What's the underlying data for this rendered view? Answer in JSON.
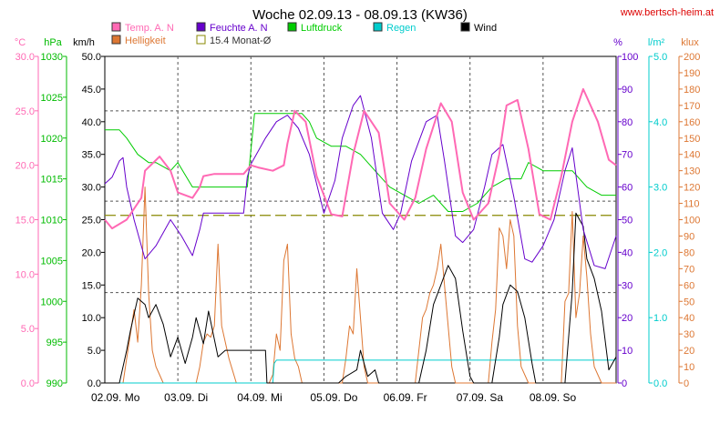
{
  "chart_data": {
    "type": "line",
    "title": "Woche 02.09.13 - 08.09.13 (KW36)",
    "watermark": "www.bertsch-heim.at",
    "x_labels": [
      "02.09.  Mo",
      "03.09.  Di",
      "04.09.  Mi",
      "05.09.  Do",
      "06.09.  Fr",
      "07.09.  Sa",
      "08.09.  So"
    ],
    "x_range": [
      0,
      7
    ],
    "axes": {
      "temp": {
        "unit": "°C",
        "color": "#ff69b4",
        "range": [
          0,
          30
        ],
        "ticks": [
          "0.0",
          "5.0",
          "10.0",
          "15.0",
          "20.0",
          "25.0",
          "30.0"
        ]
      },
      "press": {
        "unit": "hPa",
        "color": "#00bb00",
        "range": [
          990,
          1030
        ],
        "ticks": [
          "990",
          "995",
          "1000",
          "1005",
          "1010",
          "1015",
          "1020",
          "1025",
          "1030"
        ]
      },
      "wind": {
        "unit": "km/h",
        "color": "#000000",
        "range": [
          0,
          50
        ],
        "ticks": [
          "0.0",
          "5.0",
          "10.0",
          "15.0",
          "20.0",
          "25.0",
          "30.0",
          "35.0",
          "40.0",
          "45.0",
          "50.0"
        ]
      },
      "hum": {
        "unit": "%",
        "color": "#6600cc",
        "range": [
          0,
          100
        ],
        "ticks": [
          "0",
          "10",
          "20",
          "30",
          "40",
          "50",
          "60",
          "70",
          "80",
          "90",
          "100"
        ]
      },
      "rain": {
        "unit": "l/m²",
        "color": "#00cccc",
        "range": [
          0,
          5
        ],
        "ticks": [
          "0.0",
          "1.0",
          "2.0",
          "3.0",
          "4.0",
          "5.0"
        ]
      },
      "light": {
        "unit": "klux",
        "color": "#dd7733",
        "range": [
          0,
          200
        ],
        "ticks": [
          "0",
          "10",
          "20",
          "30",
          "40",
          "50",
          "60",
          "70",
          "80",
          "90",
          "100",
          "110",
          "120",
          "130",
          "140",
          "150",
          "160",
          "170",
          "180",
          "190",
          "200"
        ]
      }
    },
    "legend": [
      {
        "name": "Temp. A. N",
        "color": "#ff69b4"
      },
      {
        "name": "Feuchte A. N",
        "color": "#6600cc"
      },
      {
        "name": "Luftdruck",
        "color": "#00cc00"
      },
      {
        "name": "Regen",
        "color": "#00cccc"
      },
      {
        "name": "Wind",
        "color": "#000000"
      },
      {
        "name": "Helligkeit",
        "color": "#dd7733"
      },
      {
        "name": "15.4 Monat-Ø",
        "color": "#888800"
      }
    ],
    "series": [
      {
        "key": "temp",
        "axis": "temp",
        "color": "#ff69b4",
        "width": 2,
        "x": [
          0,
          0.1,
          0.3,
          0.5,
          0.55,
          0.75,
          0.9,
          1.0,
          1.2,
          1.3,
          1.35,
          1.5,
          1.7,
          1.9,
          2.0,
          2.1,
          2.3,
          2.45,
          2.5,
          2.6,
          2.75,
          2.9,
          3.1,
          3.25,
          3.4,
          3.55,
          3.75,
          3.9,
          4.1,
          4.25,
          4.4,
          4.6,
          4.75,
          4.9,
          5.05,
          5.25,
          5.4,
          5.5,
          5.65,
          5.8,
          5.95,
          6.1,
          6.25,
          6.4,
          6.55,
          6.75,
          6.9,
          7.0
        ],
        "y": [
          15.0,
          14.2,
          15.0,
          17.0,
          19.5,
          20.8,
          19.5,
          17.5,
          17.0,
          18.0,
          19.0,
          19.2,
          19.2,
          19.2,
          20.0,
          19.8,
          19.5,
          20.0,
          22.0,
          25.0,
          24.0,
          19.0,
          15.5,
          15.3,
          21.0,
          25.0,
          23.0,
          16.5,
          15.0,
          17.0,
          21.5,
          25.7,
          24.0,
          17.5,
          15.0,
          16.5,
          21.0,
          25.5,
          26.0,
          21.5,
          15.5,
          15.0,
          19.0,
          24.0,
          27.0,
          24.0,
          20.5,
          20.0
        ]
      },
      {
        "key": "hum",
        "axis": "hum",
        "color": "#6600cc",
        "width": 1,
        "x": [
          0,
          0.1,
          0.2,
          0.25,
          0.3,
          0.4,
          0.55,
          0.7,
          0.9,
          1.05,
          1.2,
          1.3,
          1.35,
          1.5,
          1.7,
          1.9,
          1.95,
          2.0,
          2.2,
          2.35,
          2.5,
          2.65,
          2.8,
          3.0,
          3.15,
          3.25,
          3.4,
          3.5,
          3.65,
          3.8,
          3.95,
          4.05,
          4.2,
          4.4,
          4.55,
          4.65,
          4.8,
          4.9,
          5.05,
          5.2,
          5.3,
          5.45,
          5.6,
          5.75,
          5.85,
          6.0,
          6.15,
          6.3,
          6.4,
          6.55,
          6.7,
          6.85,
          7.0
        ],
        "y": [
          61,
          63,
          68,
          69,
          60,
          50,
          38,
          42,
          50,
          45,
          39,
          47,
          52,
          52,
          52,
          52,
          63,
          67,
          75,
          80,
          82,
          78,
          70,
          52,
          62,
          75,
          85,
          88,
          75,
          52,
          47,
          52,
          68,
          80,
          82,
          68,
          45,
          43,
          47,
          60,
          70,
          73,
          57,
          38,
          37,
          42,
          50,
          65,
          72,
          47,
          36,
          35,
          45
        ]
      },
      {
        "key": "press",
        "axis": "press",
        "color": "#00cc00",
        "width": 1,
        "x": [
          0,
          0.2,
          0.3,
          0.45,
          0.6,
          0.7,
          0.9,
          1.0,
          1.2,
          1.4,
          1.6,
          1.9,
          1.95,
          2.05,
          2.2,
          2.5,
          2.7,
          2.8,
          2.9,
          3.1,
          3.3,
          3.5,
          3.7,
          3.9,
          4.1,
          4.3,
          4.5,
          4.7,
          4.9,
          5.1,
          5.3,
          5.5,
          5.7,
          5.8,
          6.0,
          6.2,
          6.4,
          6.6,
          6.8,
          7.0
        ],
        "y": [
          1021,
          1021,
          1020,
          1018,
          1017,
          1017,
          1016,
          1017,
          1014,
          1014,
          1014,
          1014,
          1014,
          1023,
          1023,
          1023,
          1023,
          1022,
          1020,
          1019,
          1019,
          1018,
          1016,
          1014,
          1013,
          1012,
          1013,
          1011,
          1011,
          1012,
          1014,
          1015,
          1015,
          1017,
          1016,
          1016,
          1016,
          1014,
          1013,
          1013
        ]
      },
      {
        "key": "wind",
        "axis": "wind",
        "color": "#000000",
        "width": 1,
        "x": [
          0,
          0.2,
          0.22,
          0.3,
          0.35,
          0.45,
          0.55,
          0.6,
          0.7,
          0.8,
          0.9,
          1.0,
          1.1,
          1.2,
          1.25,
          1.35,
          1.42,
          1.55,
          1.65,
          1.7,
          1.8,
          2.0,
          2.2,
          2.22,
          2.5,
          3.2,
          3.3,
          3.45,
          3.5,
          3.6,
          3.7,
          3.75,
          3.9,
          4.3,
          4.4,
          4.5,
          4.6,
          4.7,
          4.75,
          4.8,
          4.9,
          5.0,
          5.05,
          5.3,
          5.4,
          5.45,
          5.55,
          5.65,
          5.75,
          5.85,
          5.9,
          6.3,
          6.4,
          6.45,
          6.55,
          6.6,
          6.7,
          6.8,
          6.9,
          7.0
        ],
        "y": [
          0,
          0,
          1,
          5,
          8,
          13,
          12,
          10,
          12,
          9,
          4,
          7,
          3,
          7,
          10,
          6,
          11,
          4,
          5,
          5,
          5,
          5,
          5,
          0,
          0,
          0,
          1,
          2,
          5,
          1,
          2,
          0,
          0,
          0,
          5,
          12,
          15,
          18,
          17,
          16,
          8,
          1,
          0,
          0,
          7,
          12,
          15,
          14,
          10,
          3,
          0,
          0,
          14,
          26,
          24,
          19,
          16,
          11,
          2,
          4
        ]
      },
      {
        "key": "light",
        "axis": "light",
        "color": "#dd7733",
        "width": 1,
        "x": [
          0,
          0.25,
          0.3,
          0.35,
          0.4,
          0.45,
          0.5,
          0.55,
          0.6,
          0.65,
          0.7,
          0.75,
          0.8,
          0.9,
          1.0,
          1.25,
          1.3,
          1.35,
          1.4,
          1.45,
          1.5,
          1.55,
          1.6,
          1.7,
          1.8,
          2.0,
          2.25,
          2.3,
          2.35,
          2.4,
          2.45,
          2.5,
          2.55,
          2.6,
          2.65,
          2.7,
          2.8,
          2.9,
          3.0,
          3.25,
          3.3,
          3.35,
          3.4,
          3.45,
          3.5,
          3.55,
          3.6,
          3.65,
          3.7,
          3.75,
          3.8,
          3.9,
          4.0,
          4.25,
          4.3,
          4.35,
          4.4,
          4.45,
          4.5,
          4.55,
          4.6,
          4.65,
          4.7,
          4.75,
          4.8,
          4.9,
          5.0,
          5.25,
          5.3,
          5.35,
          5.4,
          5.45,
          5.5,
          5.55,
          5.6,
          5.65,
          5.7,
          5.8,
          5.9,
          6.0,
          6.25,
          6.3,
          6.35,
          6.4,
          6.45,
          6.5,
          6.55,
          6.6,
          6.65,
          6.7,
          6.8,
          6.9,
          7.0
        ],
        "y": [
          0,
          0,
          15,
          30,
          45,
          25,
          60,
          120,
          55,
          20,
          10,
          5,
          0,
          0,
          0,
          0,
          10,
          25,
          30,
          28,
          35,
          85,
          35,
          15,
          0,
          0,
          0,
          5,
          30,
          20,
          75,
          85,
          30,
          15,
          10,
          0,
          0,
          0,
          0,
          0,
          15,
          35,
          30,
          70,
          40,
          10,
          0,
          0,
          0,
          0,
          0,
          0,
          0,
          0,
          20,
          40,
          45,
          55,
          60,
          70,
          85,
          60,
          35,
          10,
          0,
          0,
          0,
          0,
          25,
          45,
          95,
          90,
          70,
          100,
          90,
          35,
          10,
          0,
          0,
          0,
          0,
          50,
          55,
          105,
          40,
          55,
          90,
          65,
          30,
          10,
          0,
          0,
          0
        ]
      },
      {
        "key": "rain",
        "axis": "rain",
        "color": "#00cccc",
        "width": 1,
        "x": [
          0,
          2.3,
          2.32,
          2.35,
          7.0
        ],
        "y": [
          0,
          0,
          0.3,
          0.35,
          0.35
        ]
      }
    ],
    "reference_line": {
      "label": "15.4 Monat-Ø",
      "axis": "temp",
      "value": 15.4,
      "color": "#888800"
    },
    "grid": true
  }
}
